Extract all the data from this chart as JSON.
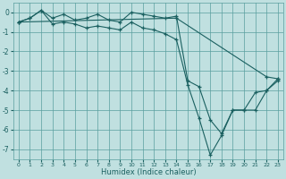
{
  "xlabel": "Humidex (Indice chaleur)",
  "bg_color": "#c0e0e0",
  "grid_color": "#5a9e9e",
  "line_color": "#1a6060",
  "marker": "+",
  "xlim": [
    -0.5,
    23.5
  ],
  "ylim": [
    -7.5,
    0.5
  ],
  "yticks": [
    0,
    -1,
    -2,
    -3,
    -4,
    -5,
    -6,
    -7
  ],
  "xticks": [
    0,
    1,
    2,
    3,
    4,
    5,
    6,
    7,
    8,
    9,
    10,
    11,
    12,
    13,
    14,
    15,
    16,
    17,
    18,
    19,
    20,
    21,
    22,
    23
  ],
  "lines": [
    {
      "x": [
        0,
        1,
        2,
        3,
        4,
        5,
        6,
        7,
        8,
        9,
        10,
        11,
        12,
        13,
        14,
        15,
        16,
        17,
        18,
        19,
        20,
        21,
        22,
        23
      ],
      "y": [
        -0.5,
        -0.3,
        0.1,
        -0.3,
        -0.1,
        -0.4,
        -0.3,
        -0.1,
        -0.4,
        -0.5,
        0.0,
        -0.1,
        -0.2,
        -0.3,
        -0.2,
        -3.5,
        -3.8,
        -5.5,
        -6.2,
        -5.0,
        -5.0,
        -4.1,
        -4.0,
        -3.4
      ]
    },
    {
      "x": [
        0,
        1,
        2,
        3,
        4,
        5,
        6,
        7,
        8,
        9,
        10,
        11,
        12,
        13,
        14,
        15,
        16,
        17,
        18,
        19,
        20,
        21,
        22,
        23
      ],
      "y": [
        -0.5,
        -0.3,
        0.1,
        -0.6,
        -0.5,
        -0.6,
        -0.8,
        -0.7,
        -0.8,
        -0.9,
        -0.5,
        -0.8,
        -0.9,
        -1.1,
        -1.4,
        -3.7,
        -5.4,
        -7.3,
        -6.3,
        -5.0,
        -5.0,
        -5.0,
        -4.0,
        -3.5
      ]
    },
    {
      "x": [
        0,
        14,
        22,
        23
      ],
      "y": [
        -0.5,
        -0.3,
        -3.3,
        -3.4
      ]
    }
  ]
}
